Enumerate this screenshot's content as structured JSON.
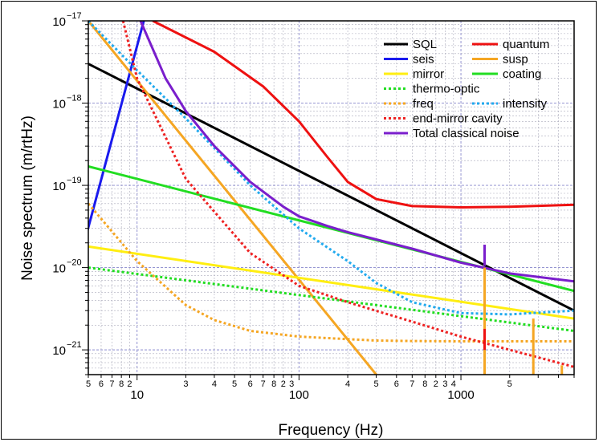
{
  "chart_data": {
    "type": "line",
    "title": "",
    "xlabel": "Frequency (Hz)",
    "ylabel": "Noise spectrum (m/rtHz)",
    "xscale": "log",
    "yscale": "log",
    "xlim": [
      5,
      5000
    ],
    "ylim": [
      5e-22,
      1e-17
    ],
    "grid": true,
    "legend_position": "top-right",
    "x_major_labels": [
      "10",
      "100",
      "1000"
    ],
    "x_minor_labels": [
      "5",
      "6",
      "7",
      "8",
      "2",
      "3",
      "4",
      "5",
      "6",
      "7",
      "8",
      "2",
      "3",
      "4",
      "5",
      "6",
      "7",
      "8",
      "2",
      "3",
      "4",
      "5"
    ],
    "y_tick_labels": [
      {
        "base": "10",
        "exp": "−17"
      },
      {
        "base": "10",
        "exp": "−18"
      },
      {
        "base": "10",
        "exp": "−19"
      },
      {
        "base": "10",
        "exp": "−20"
      },
      {
        "base": "10",
        "exp": "−21"
      }
    ],
    "series": [
      {
        "name": "SQL",
        "color": "#000000",
        "style": "solid",
        "x": [
          5,
          5000
        ],
        "y": [
          3e-18,
          3e-21
        ]
      },
      {
        "name": "quantum",
        "color": "#ee1111",
        "style": "solid",
        "x": [
          12.5,
          30,
          60,
          100,
          150,
          200,
          300,
          500,
          1000,
          2000,
          5000
        ],
        "y": [
          1e-17,
          4.2e-18,
          1.6e-18,
          6e-19,
          2.2e-19,
          1.1e-19,
          6.8e-20,
          5.6e-20,
          5.4e-20,
          5.5e-20,
          5.8e-20
        ]
      },
      {
        "name": "seis",
        "color": "#1a1aee",
        "style": "solid",
        "x": [
          11,
          2.85
        ],
        "y": [
          1e-17,
          5e-22
        ],
        "xlog_shape": "power"
      },
      {
        "name": "susp",
        "color": "#f5a623",
        "style": "solid",
        "x": [
          5,
          300
        ],
        "y": [
          1e-17,
          5e-22
        ]
      },
      {
        "name": "mirror",
        "color": "#ffee11",
        "style": "solid",
        "x": [
          5,
          5000
        ],
        "y": [
          1.8e-20,
          2.4e-21
        ]
      },
      {
        "name": "coating",
        "color": "#22dd22",
        "style": "solid",
        "x": [
          5,
          5000
        ],
        "y": [
          1.7e-19,
          5.2e-21
        ]
      },
      {
        "name": "thermo-optic",
        "color": "#22dd22",
        "style": "dotted",
        "x": [
          5,
          5000
        ],
        "y": [
          1e-20,
          1.7e-21
        ]
      },
      {
        "name": "freq",
        "color": "#f5a623",
        "style": "dotted",
        "x": [
          5,
          10,
          20,
          30,
          50,
          100,
          200,
          300,
          500,
          1000,
          5000
        ],
        "y": [
          6e-20,
          1.2e-20,
          3.5e-21,
          2.3e-21,
          1.7e-21,
          1.45e-21,
          1.35e-21,
          1.3e-21,
          1.28e-21,
          1.27e-21,
          1.27e-21
        ]
      },
      {
        "name": "intensity",
        "color": "#22aaee",
        "style": "dotted",
        "x": [
          5,
          10,
          20,
          50,
          100,
          200,
          300,
          500,
          1000,
          2000,
          5000
        ],
        "y": [
          1e-17,
          2.5e-18,
          6.5e-19,
          1e-19,
          3e-20,
          1.2e-20,
          6.5e-21,
          3.8e-21,
          2.8e-21,
          2.7e-21,
          3e-21
        ]
      },
      {
        "name": "end-mirror cavity",
        "color": "#ee2222",
        "style": "dotted",
        "x": [
          8.2,
          10,
          20,
          50,
          100,
          200,
          500,
          1000,
          2000,
          5000
        ],
        "y": [
          1e-17,
          2e-18,
          1.2e-19,
          1.5e-20,
          6e-21,
          3.8e-21,
          2.2e-21,
          1.45e-21,
          1e-21,
          6.2e-22
        ]
      },
      {
        "name": "Total classical noise",
        "color": "#7a1ecc",
        "style": "solid",
        "x": [
          10.5,
          15,
          20,
          30,
          50,
          80,
          100,
          150,
          200,
          300,
          500,
          1000,
          2000,
          5000
        ],
        "y": [
          1e-17,
          2e-18,
          8e-19,
          3e-19,
          1.1e-19,
          5.5e-20,
          4.2e-20,
          3.2e-20,
          2.7e-20,
          2.2e-20,
          1.7e-20,
          1.15e-20,
          8.5e-21,
          6.8e-21
        ]
      }
    ],
    "spikes": [
      {
        "color": "#f5a623",
        "x": 1400,
        "y_from": 5e-22,
        "y_to": 1e-20
      },
      {
        "color": "#7a1ecc",
        "x": 1400,
        "y_from": 1.05e-20,
        "y_to": 1.9e-20
      },
      {
        "color": "#ee1111",
        "x": 1400,
        "y_from": 1e-21,
        "y_to": 1.8e-21
      },
      {
        "color": "#f5a623",
        "x": 2800,
        "y_from": 5e-22,
        "y_to": 2.4e-21
      },
      {
        "color": "#f5a623",
        "x": 4200,
        "y_from": 5e-22,
        "y_to": 6.5e-22
      }
    ],
    "legend": [
      {
        "label": "SQL",
        "color": "#000000",
        "style": "solid",
        "col": 0,
        "row": 0
      },
      {
        "label": "quantum",
        "color": "#ee1111",
        "style": "solid",
        "col": 1,
        "row": 0
      },
      {
        "label": "seis",
        "color": "#1a1aee",
        "style": "solid",
        "col": 0,
        "row": 1
      },
      {
        "label": "susp",
        "color": "#f5a623",
        "style": "solid",
        "col": 1,
        "row": 1
      },
      {
        "label": "mirror",
        "color": "#ffee11",
        "style": "solid",
        "col": 0,
        "row": 2
      },
      {
        "label": "coating",
        "color": "#22dd22",
        "style": "solid",
        "col": 1,
        "row": 2
      },
      {
        "label": "thermo-optic",
        "color": "#22dd22",
        "style": "dotted",
        "col": 0,
        "row": 3
      },
      {
        "label": "freq",
        "color": "#f5a623",
        "style": "dotted",
        "col": 0,
        "row": 4
      },
      {
        "label": "intensity",
        "color": "#22aaee",
        "style": "dotted",
        "col": 1,
        "row": 4
      },
      {
        "label": "end-mirror cavity",
        "color": "#ee2222",
        "style": "dotted",
        "col": 0,
        "row": 5
      },
      {
        "label": "Total classical noise",
        "color": "#7a1ecc",
        "style": "solid",
        "col": 0,
        "row": 6
      }
    ]
  }
}
